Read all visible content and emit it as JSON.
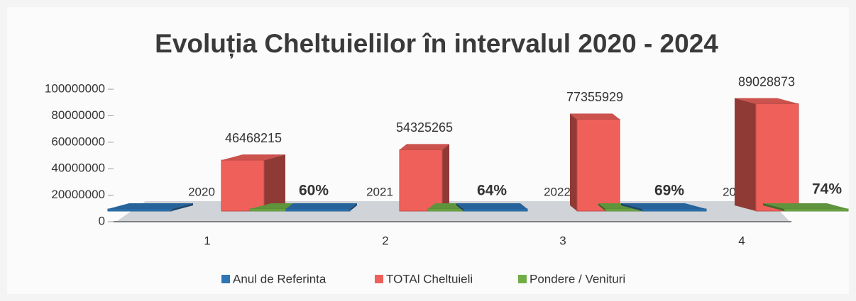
{
  "chart_data": {
    "type": "bar3d",
    "title": "Evoluția Cheltuielilor în intervalul 2020 - 2024",
    "categories": [
      "1",
      "2",
      "3",
      "4"
    ],
    "series": [
      {
        "name": "Anul de Referinta",
        "color": "#2e75b6",
        "values": [
          2020,
          2021,
          2022,
          2023
        ]
      },
      {
        "name": "TOTAl Cheltuieli",
        "color": "#f0605a",
        "values": [
          46468215,
          54325265,
          77355929,
          89028873
        ]
      },
      {
        "name": "Pondere / Venituri",
        "color": "#70ad47",
        "values": [
          60,
          64,
          69,
          74
        ],
        "value_labels": [
          "60%",
          "64%",
          "69%",
          "74%"
        ]
      }
    ],
    "ylim": [
      0,
      100000000
    ],
    "yticks": [
      0,
      20000000,
      40000000,
      60000000,
      80000000,
      100000000
    ],
    "legend": "bottom"
  }
}
